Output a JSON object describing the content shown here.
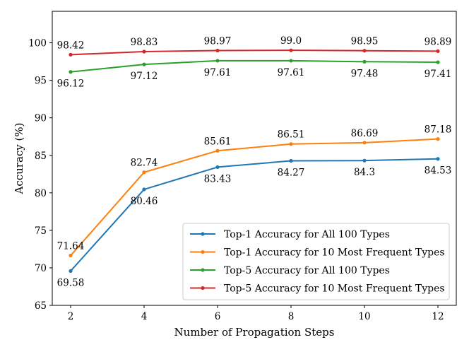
{
  "chart_data": {
    "type": "line",
    "title": "",
    "xlabel": "Number of Propagation Steps",
    "ylabel": "Accuracy (%)",
    "x": [
      2,
      4,
      6,
      8,
      10,
      12
    ],
    "xlim": [
      1.5,
      12.5
    ],
    "ylim": [
      65,
      104.2
    ],
    "xticks": [
      2,
      4,
      6,
      8,
      10,
      12
    ],
    "yticks": [
      65,
      70,
      75,
      80,
      85,
      90,
      95,
      100
    ],
    "grid": false,
    "legend_position": "bottom-right",
    "series": [
      {
        "name": "Top-1 Accuracy for All 100 Types",
        "color": "#1f77b4",
        "values": [
          69.58,
          80.46,
          83.43,
          84.27,
          84.3,
          84.53
        ],
        "labels": [
          "69.58",
          "80.46",
          "83.43",
          "84.27",
          "84.3",
          "84.53"
        ],
        "label_side": "below"
      },
      {
        "name": "Top-1 Accuracy for 10 Most Frequent Types",
        "color": "#ff7f0e",
        "values": [
          71.64,
          82.74,
          85.61,
          86.51,
          86.69,
          87.18
        ],
        "labels": [
          "71.64",
          "82.74",
          "85.61",
          "86.51",
          "86.69",
          "87.18"
        ],
        "label_side": "above"
      },
      {
        "name": "Top-5 Accuracy for All 100 Types",
        "color": "#2ca02c",
        "values": [
          96.12,
          97.12,
          97.61,
          97.61,
          97.48,
          97.41
        ],
        "labels": [
          "96.12",
          "97.12",
          "97.61",
          "97.61",
          "97.48",
          "97.41"
        ],
        "label_side": "below"
      },
      {
        "name": "Top-5 Accuracy for 10 Most Frequent Types",
        "color": "#d62728",
        "values": [
          98.42,
          98.83,
          98.97,
          99.0,
          98.95,
          98.89
        ],
        "labels": [
          "98.42",
          "98.83",
          "98.97",
          "99.0",
          "98.95",
          "98.89"
        ],
        "label_side": "above"
      }
    ]
  }
}
